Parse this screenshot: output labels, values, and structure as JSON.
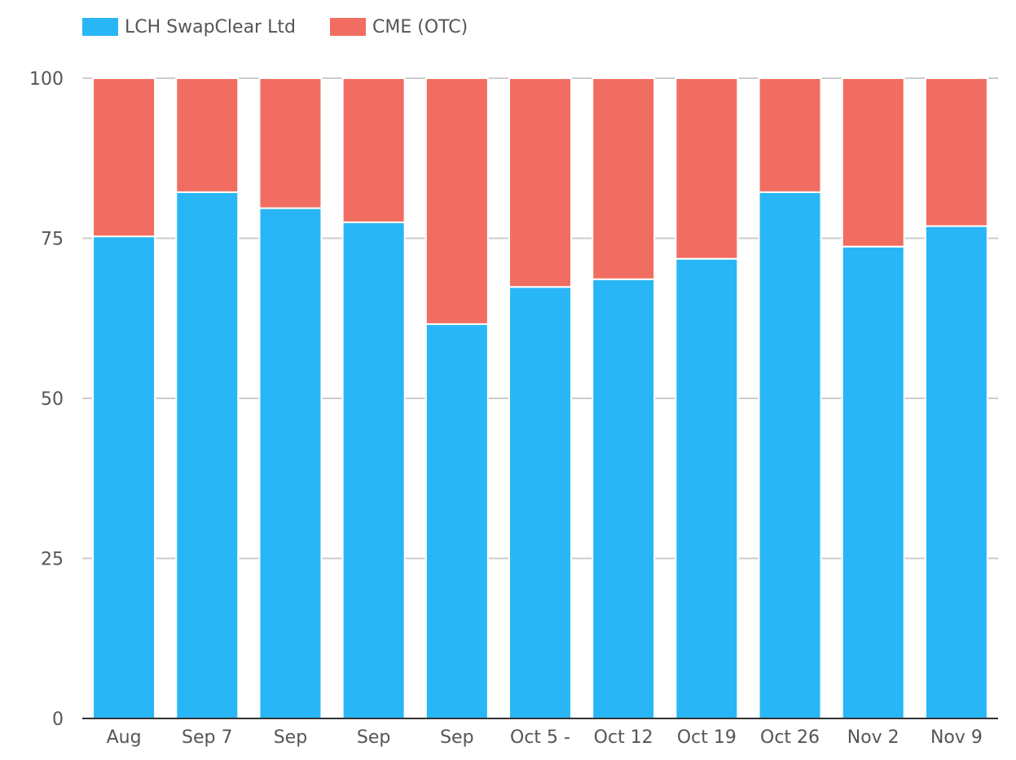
{
  "colors": {
    "lch": "#29b6f6",
    "cme": "#f26d61",
    "grid": "#cccccc",
    "axis": "#333333",
    "text": "#555555"
  },
  "chart_data": {
    "type": "bar",
    "stacked": true,
    "title": "",
    "xlabel": "",
    "ylabel": "",
    "ylim": [
      0,
      100
    ],
    "yticks": [
      0,
      25,
      50,
      75,
      100
    ],
    "grid": true,
    "legend_position": "top-left",
    "categories": [
      "Aug",
      "Sep 7",
      "Sep",
      "Sep",
      "Sep",
      "Oct 5 -",
      "Oct 12",
      "Oct 19",
      "Oct 26",
      "Nov 2",
      "Nov 9"
    ],
    "series": [
      {
        "name": "LCH SwapClear Ltd",
        "color": "#29b6f6",
        "values": [
          75.3,
          82.2,
          79.7,
          77.5,
          61.6,
          67.4,
          68.6,
          71.8,
          82.2,
          73.7,
          76.9
        ]
      },
      {
        "name": "CME (OTC)",
        "color": "#f26d61",
        "values": [
          24.7,
          17.8,
          20.3,
          22.5,
          38.4,
          32.6,
          31.4,
          28.2,
          17.8,
          26.3,
          23.1
        ]
      }
    ]
  }
}
